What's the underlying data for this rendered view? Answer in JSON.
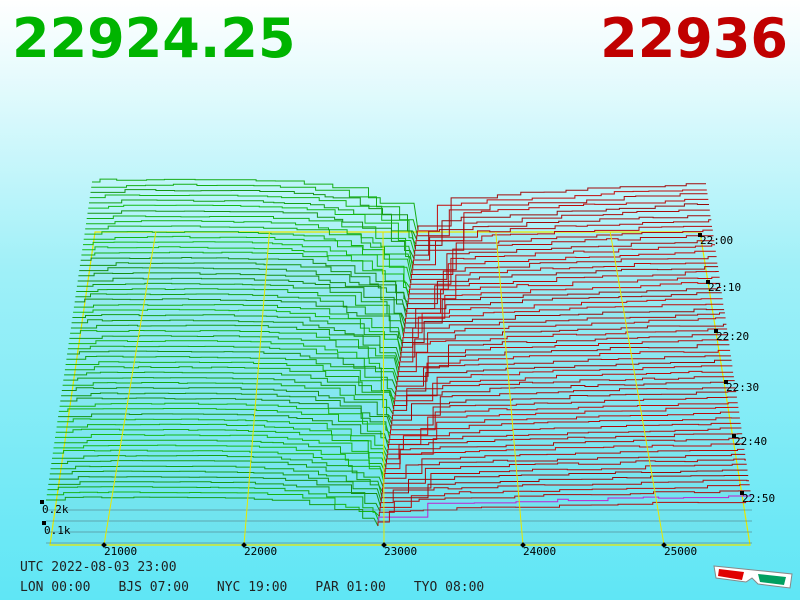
{
  "header": {
    "bid": "22924.25",
    "ask": "22936"
  },
  "price_axis": {
    "labels": [
      "21000",
      "22000",
      "23000",
      "24000",
      "25000"
    ]
  },
  "depth_axis": {
    "labels": [
      "0.1k",
      "0.2k"
    ]
  },
  "time_axis": {
    "labels": [
      "22:00",
      "22:10",
      "22:20",
      "22:30",
      "22:40",
      "22:50"
    ]
  },
  "footer": {
    "utc": "UTC 2022-08-03 23:00",
    "cities": [
      "LON 00:00",
      "BJS 07:00",
      "NYC 19:00",
      "PAR 01:00",
      "TYO 08:00"
    ]
  }
}
